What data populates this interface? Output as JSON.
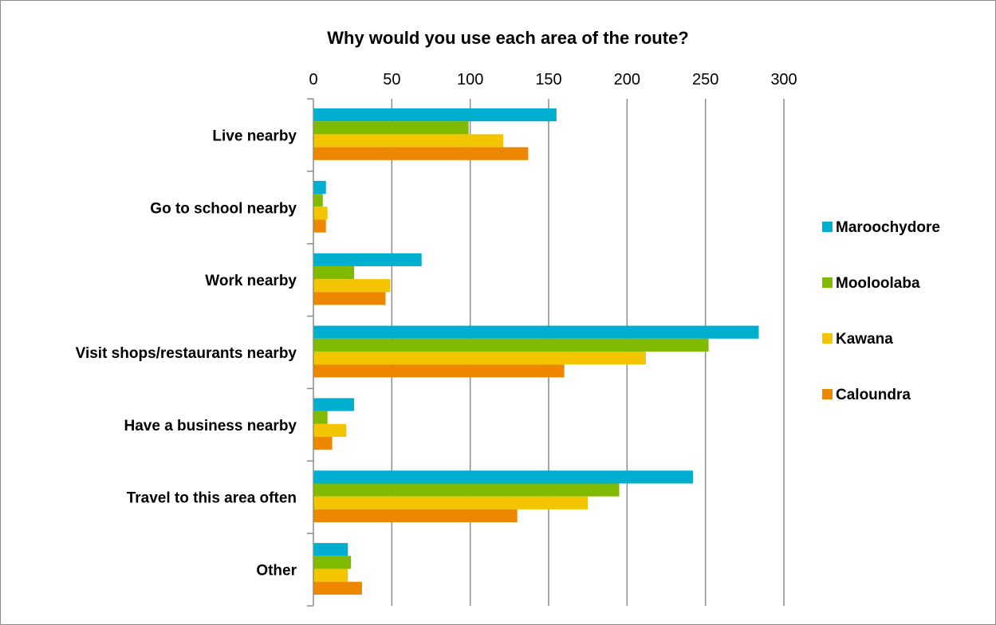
{
  "chart_data": {
    "type": "bar",
    "orientation": "horizontal",
    "title": "Why would you use each area of the route?",
    "xlabel": "",
    "ylabel": "",
    "xlim": [
      0,
      300
    ],
    "x_ticks": [
      0,
      50,
      100,
      150,
      200,
      250,
      300
    ],
    "x_axis_position": "top",
    "grid": true,
    "legend_position": "right",
    "categories": [
      "Live nearby",
      "Go to school nearby",
      "Work nearby",
      "Visit shops/restaurants nearby",
      "Have a business nearby",
      "Travel to this area often",
      "Other"
    ],
    "series": [
      {
        "name": "Maroochydore",
        "color": "#00AECF",
        "values": [
          155,
          8,
          69,
          284,
          26,
          242,
          22
        ]
      },
      {
        "name": "Mooloolaba",
        "color": "#7FBA00",
        "values": [
          99,
          6,
          26,
          252,
          9,
          195,
          24
        ]
      },
      {
        "name": "Kawana",
        "color": "#F2C500",
        "values": [
          121,
          9,
          49,
          212,
          21,
          175,
          22
        ]
      },
      {
        "name": "Caloundra",
        "color": "#EE8700",
        "values": [
          137,
          8,
          46,
          160,
          12,
          130,
          31
        ]
      }
    ]
  }
}
